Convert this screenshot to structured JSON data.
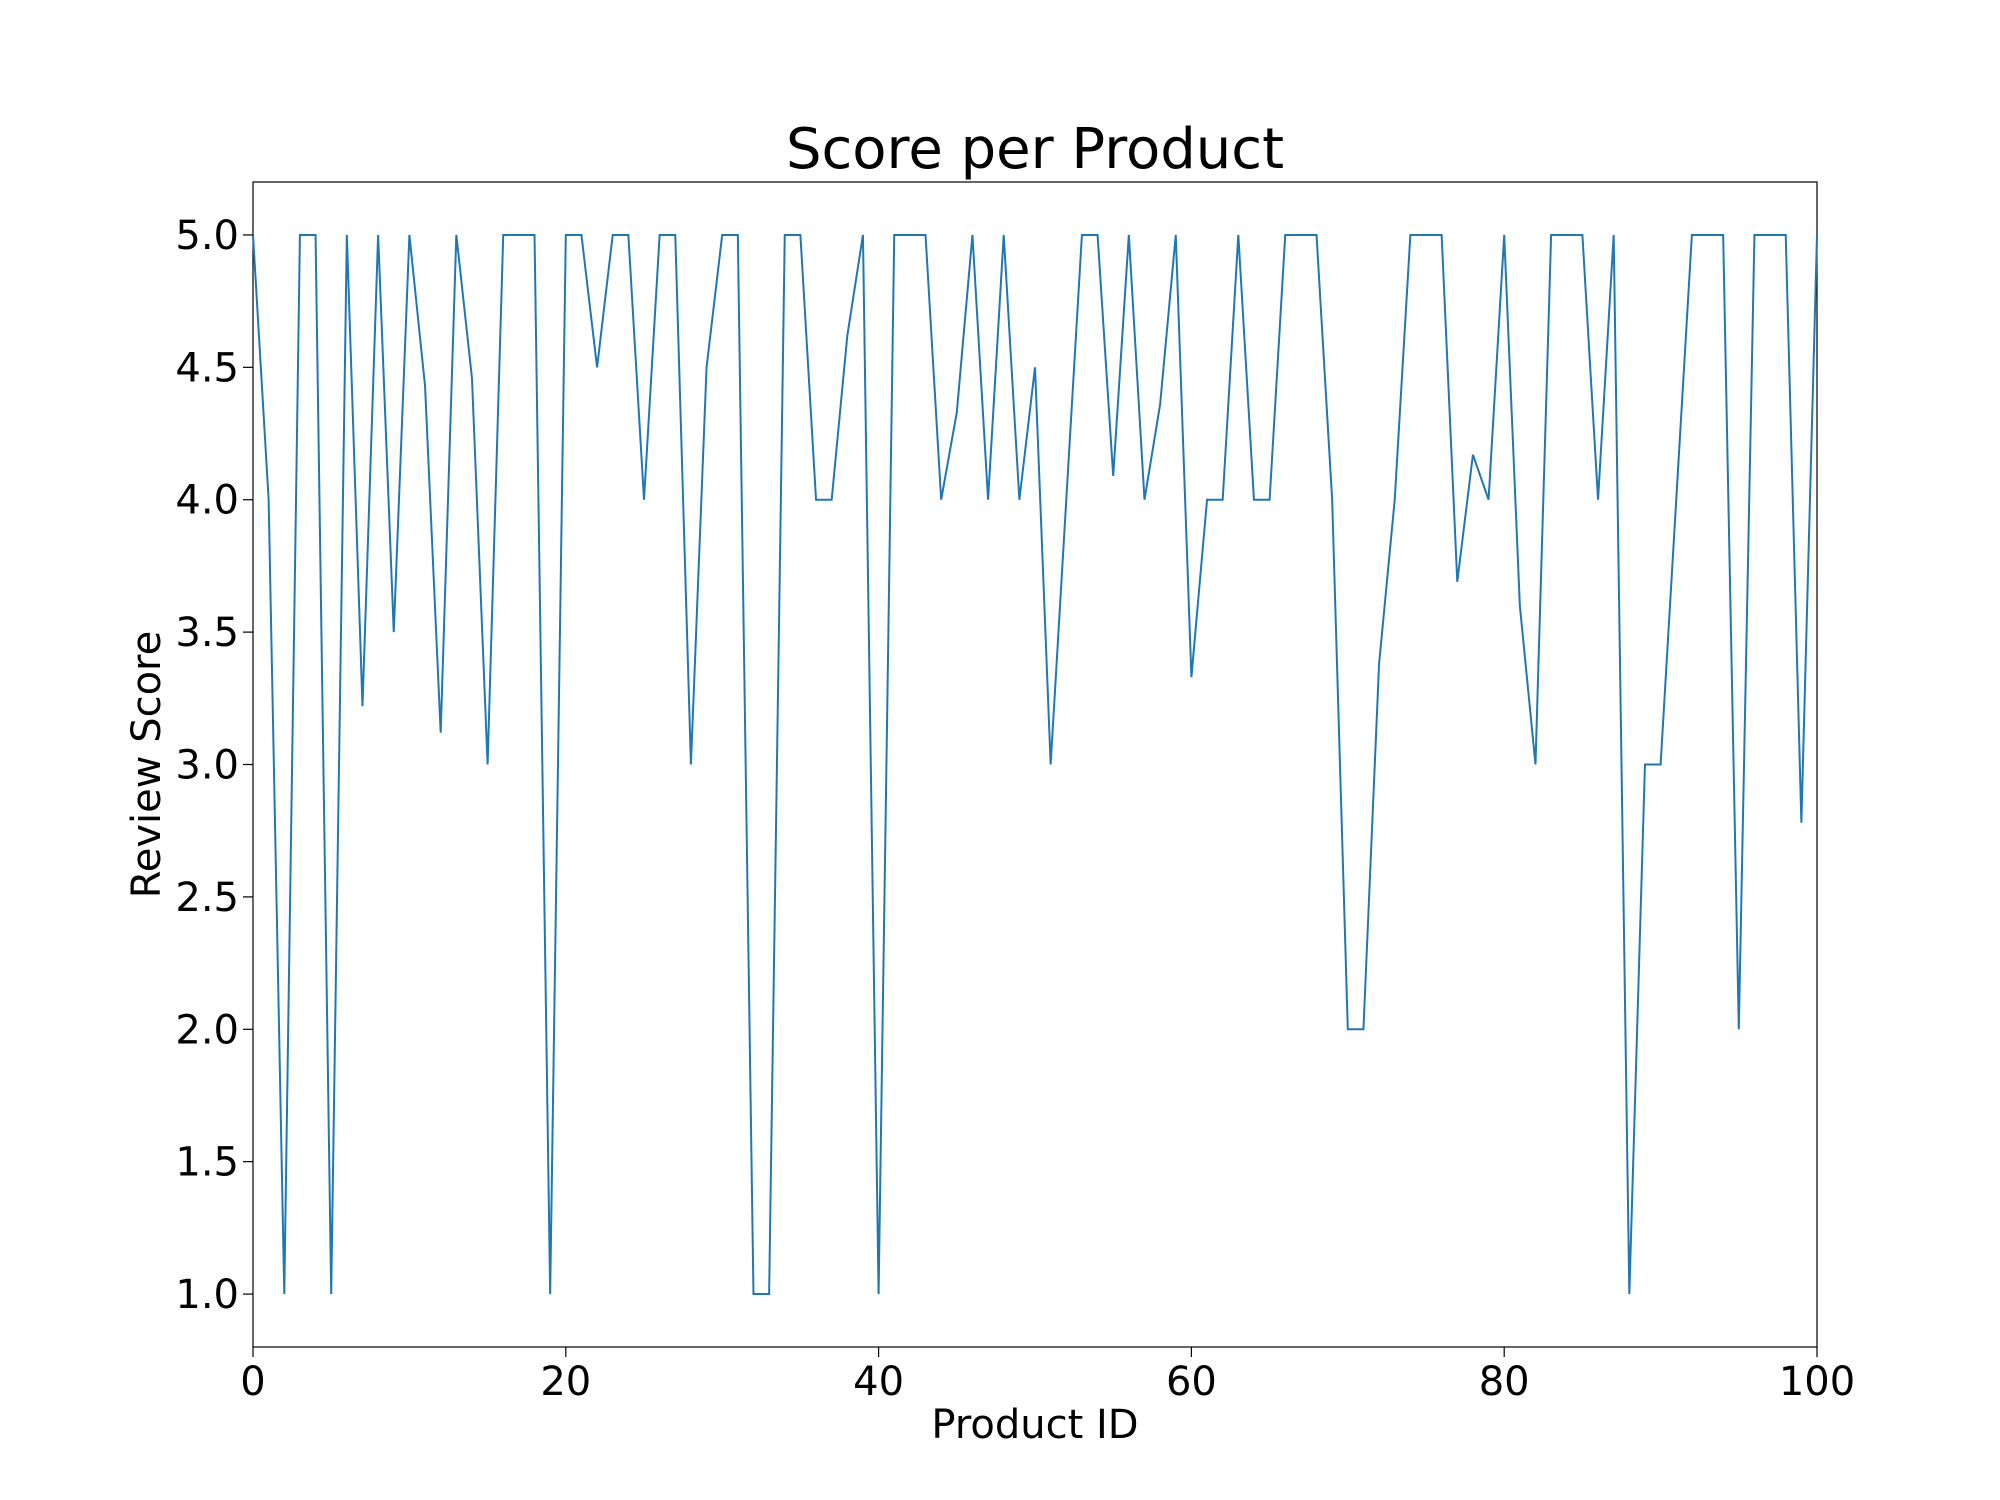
{
  "chart_data": {
    "type": "line",
    "title": "Score per Product",
    "xlabel": "Product ID",
    "ylabel": "Review Score",
    "xlim": [
      0,
      100
    ],
    "ylim": [
      0.8,
      5.2
    ],
    "xticks": [
      0,
      20,
      40,
      60,
      80,
      100
    ],
    "yticks": [
      1.0,
      1.5,
      2.0,
      2.5,
      3.0,
      3.5,
      4.0,
      4.5,
      5.0
    ],
    "xtick_labels": [
      "0",
      "20",
      "40",
      "60",
      "80",
      "100"
    ],
    "ytick_labels": [
      "1.0",
      "1.5",
      "2.0",
      "2.5",
      "3.0",
      "3.5",
      "4.0",
      "4.5",
      "5.0"
    ],
    "grid": false,
    "line_color": "#1f77b4",
    "series": [
      {
        "x": [
          0,
          1,
          2,
          3,
          4,
          5,
          6,
          7,
          8,
          9,
          10,
          11,
          12,
          13,
          14,
          15,
          16,
          17,
          18,
          19,
          20,
          21,
          22,
          23,
          24,
          25,
          26,
          27,
          28,
          29,
          30,
          31,
          32,
          33,
          34,
          35,
          36,
          37,
          38,
          39,
          40,
          41,
          42,
          43,
          44,
          45,
          46,
          47,
          48,
          49,
          50,
          51,
          52,
          53,
          54,
          55,
          56,
          57,
          58,
          59,
          60,
          61,
          62,
          63,
          64,
          65,
          66,
          67,
          68,
          69,
          70,
          71,
          72,
          73,
          74,
          75,
          76,
          77,
          78,
          79,
          80,
          81,
          82,
          83,
          84,
          85,
          86,
          87,
          88,
          89,
          90,
          91,
          92,
          93,
          94,
          95,
          96,
          97,
          98,
          99,
          100
        ],
        "values": [
          5.0,
          4.0,
          1.0,
          5.0,
          5.0,
          1.0,
          5.0,
          3.22,
          5.0,
          3.5,
          5.0,
          4.43,
          3.12,
          5.0,
          4.46,
          3.0,
          5.0,
          5.0,
          5.0,
          1.0,
          5.0,
          5.0,
          4.5,
          5.0,
          5.0,
          4.0,
          5.0,
          5.0,
          3.0,
          4.5,
          5.0,
          5.0,
          1.0,
          1.0,
          5.0,
          5.0,
          4.0,
          4.0,
          4.62,
          5.0,
          1.0,
          5.0,
          5.0,
          5.0,
          4.0,
          4.33,
          5.0,
          4.0,
          5.0,
          4.0,
          4.5,
          3.0,
          4.0,
          5.0,
          5.0,
          4.09,
          5.0,
          4.0,
          4.36,
          5.0,
          3.33,
          4.0,
          4.0,
          5.0,
          4.0,
          4.0,
          5.0,
          5.0,
          5.0,
          4.0,
          2.0,
          2.0,
          3.38,
          4.0,
          5.0,
          5.0,
          5.0,
          3.69,
          4.17,
          4.0,
          5.0,
          3.6,
          3.0,
          5.0,
          5.0,
          5.0,
          4.0,
          5.0,
          1.0,
          3.0,
          3.0,
          4.0,
          5.0,
          5.0,
          5.0,
          2.0,
          5.0,
          5.0,
          5.0,
          2.78,
          5.0
        ]
      }
    ]
  }
}
